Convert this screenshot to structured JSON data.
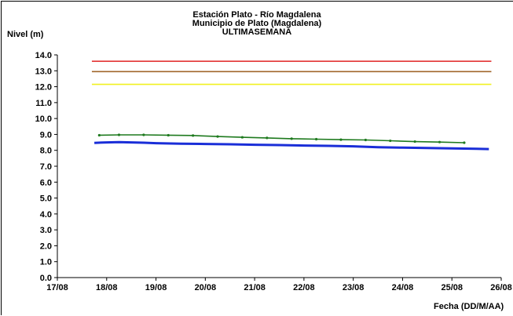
{
  "chart_data": {
    "type": "line",
    "title_lines": [
      "Estación Plato - Río Magdalena",
      "Municipio de Plato (Magdalena)",
      "ULTIMASEMANA"
    ],
    "ylabel": "Nivel (m)",
    "xlabel": "Fecha (DD/M/AA)",
    "ylim": [
      0,
      14
    ],
    "yticks": [
      "0.0",
      "1.0",
      "2.0",
      "3.0",
      "4.0",
      "5.0",
      "6.0",
      "7.0",
      "8.0",
      "9.0",
      "10.0",
      "11.0",
      "12.0",
      "13.0",
      "14.0"
    ],
    "xlim": [
      0,
      9
    ],
    "xticks": [
      "17/08",
      "18/08",
      "19/08",
      "20/08",
      "21/08",
      "22/08",
      "23/08",
      "24/08",
      "25/08",
      "26/08"
    ],
    "grid": false,
    "thresholds": [
      {
        "value": 13.6,
        "color": "#e02020"
      },
      {
        "value": 12.95,
        "color": "#a0662a"
      },
      {
        "value": 12.15,
        "color": "#f0f020"
      }
    ],
    "series": [
      {
        "color": "#1a2ed8",
        "marker": false,
        "x": [
          0.75,
          1.0,
          1.25,
          1.5,
          1.75,
          2.0,
          2.5,
          3.0,
          3.5,
          4.0,
          4.5,
          5.0,
          5.5,
          6.0,
          6.5,
          7.0,
          7.5,
          8.0,
          8.5,
          8.75
        ],
        "y": [
          8.47,
          8.5,
          8.52,
          8.5,
          8.48,
          8.45,
          8.42,
          8.4,
          8.38,
          8.35,
          8.33,
          8.3,
          8.28,
          8.25,
          8.2,
          8.17,
          8.15,
          8.12,
          8.1,
          8.08
        ]
      },
      {
        "color": "#1e7a1e",
        "marker": true,
        "x": [
          0.85,
          1.25,
          1.75,
          2.25,
          2.75,
          3.25,
          3.75,
          4.25,
          4.75,
          5.25,
          5.75,
          6.25,
          6.75,
          7.25,
          7.75,
          8.25
        ],
        "y": [
          8.95,
          8.97,
          8.97,
          8.95,
          8.93,
          8.87,
          8.82,
          8.78,
          8.73,
          8.7,
          8.67,
          8.65,
          8.6,
          8.55,
          8.52,
          8.48
        ]
      }
    ]
  }
}
